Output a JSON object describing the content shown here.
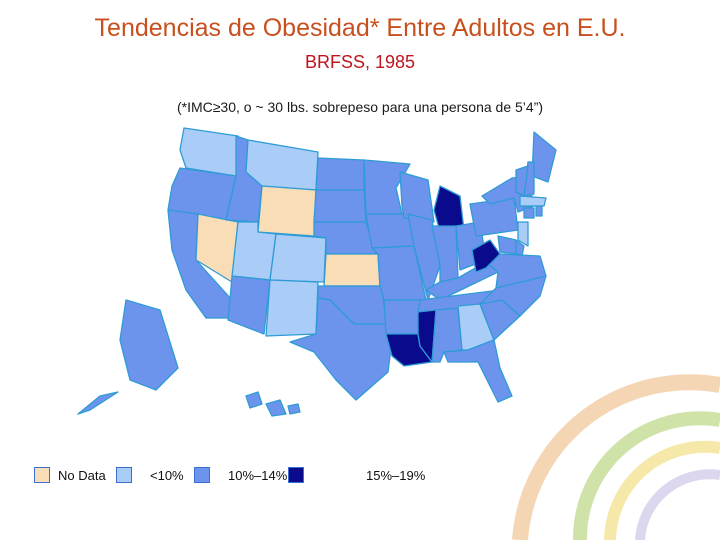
{
  "title": "Tendencias de Obesidad* Entre Adultos en E.U.",
  "subtitle": "BRFSS, 1985",
  "note": "(*IMC≥30, o ~ 30 lbs. sobrepeso para una persona de 5’4”)",
  "colors": {
    "no_data": "#f8ddb6",
    "lt10": "#a9cdf6",
    "10_14": "#6d94ec",
    "15_19": "#0a0a8c",
    "state_border": "#2f9bd6",
    "title": "#c8501e",
    "subtitle": "#c0141e"
  },
  "legend": [
    {
      "label": "No Data",
      "class": "no_data"
    },
    {
      "label": "<10%",
      "class": "lt10"
    },
    {
      "label": "10%–14%",
      "class": "10_14"
    },
    {
      "label": "15%–19%",
      "class": "15_19"
    }
  ],
  "states": {
    "WA": "lt10",
    "OR": "10_14",
    "CA": "10_14",
    "NV": "no_data",
    "ID": "10_14",
    "MT": "lt10",
    "WY": "no_data",
    "UT": "lt10",
    "CO": "lt10",
    "AZ": "10_14",
    "NM": "lt10",
    "ND": "10_14",
    "SD": "10_14",
    "NE": "10_14",
    "KS": "no_data",
    "OK": "10_14",
    "TX": "10_14",
    "MN": "10_14",
    "IA": "10_14",
    "MO": "10_14",
    "AR": "10_14",
    "LA": "15_19",
    "WI": "10_14",
    "IL": "10_14",
    "MI": "15_19",
    "IN": "10_14",
    "OH": "10_14",
    "KY": "10_14",
    "TN": "10_14",
    "MS": "15_19",
    "AL": "10_14",
    "GA": "lt10",
    "FL": "10_14",
    "SC": "10_14",
    "NC": "10_14",
    "VA": "10_14",
    "WV": "15_19",
    "PA": "10_14",
    "NY": "10_14",
    "ME": "10_14",
    "NH": "10_14",
    "VT": "10_14",
    "MA": "lt10",
    "CT": "10_14",
    "RI": "10_14",
    "NJ": "lt10",
    "DE": "10_14",
    "MD": "10_14",
    "AK": "10_14",
    "HI": "10_14"
  }
}
